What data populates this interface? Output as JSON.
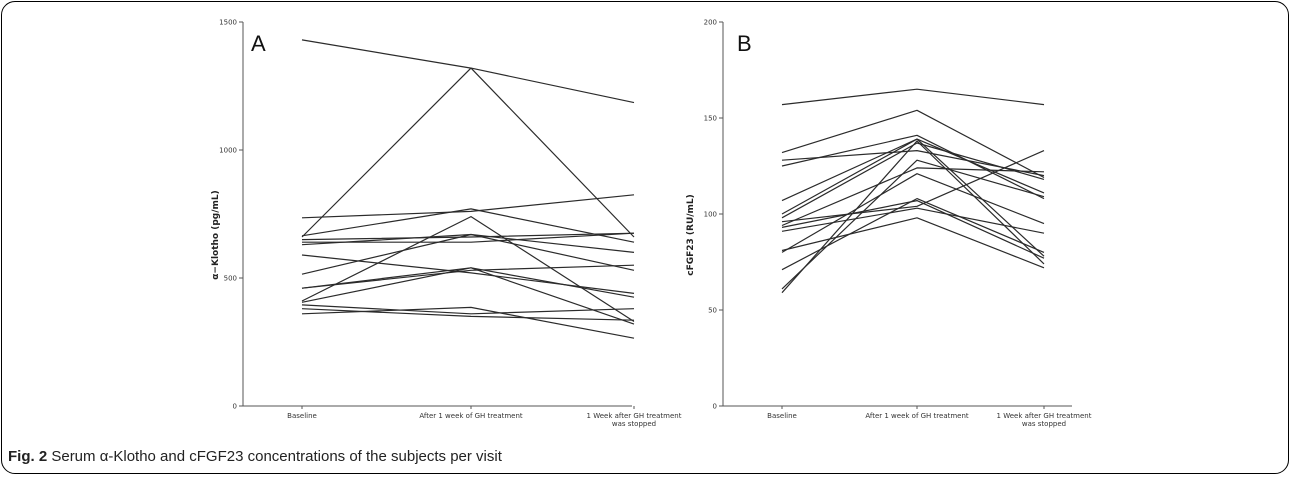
{
  "caption": {
    "label": "Fig. 2",
    "text": "Serum α-Klotho and cFGF23 concentrations of the subjects per visit"
  },
  "chart_data": [
    {
      "type": "line",
      "panel": "A",
      "ylabel": "α−Klotho (pg/mL)",
      "xlabel": "",
      "categories": [
        "Baseline",
        "After 1 week of GH treatment",
        "1 Week after GH treatment was stopped"
      ],
      "ylim": [
        0,
        1500
      ],
      "yticks": [
        0,
        500,
        1000,
        1500
      ],
      "series": [
        {
          "values": [
            1430,
            1320,
            1185
          ]
        },
        {
          "values": [
            660,
            1320,
            660
          ]
        },
        {
          "values": [
            735,
            760,
            825
          ]
        },
        {
          "values": [
            665,
            770,
            640
          ]
        },
        {
          "values": [
            650,
            660,
            675
          ]
        },
        {
          "values": [
            640,
            640,
            675
          ]
        },
        {
          "values": [
            630,
            670,
            530
          ]
        },
        {
          "values": [
            590,
            520,
            440
          ]
        },
        {
          "values": [
            515,
            670,
            600
          ]
        },
        {
          "values": [
            460,
            540,
            425
          ]
        },
        {
          "values": [
            460,
            530,
            550
          ]
        },
        {
          "values": [
            410,
            740,
            330
          ]
        },
        {
          "values": [
            405,
            540,
            320
          ]
        },
        {
          "values": [
            395,
            360,
            380
          ]
        },
        {
          "values": [
            380,
            350,
            335
          ]
        },
        {
          "values": [
            360,
            385,
            265
          ]
        }
      ]
    },
    {
      "type": "line",
      "panel": "B",
      "ylabel": "cFGF23 (RU/mL)",
      "xlabel": "",
      "categories": [
        "Baseline",
        "After 1 week of GH treatment",
        "1 Week after GH treatment was stopped"
      ],
      "ylim": [
        0,
        200
      ],
      "yticks": [
        0,
        50,
        100,
        150,
        200
      ],
      "series": [
        {
          "values": [
            157,
            165,
            157
          ]
        },
        {
          "values": [
            132,
            154,
            119
          ]
        },
        {
          "values": [
            128,
            133,
            120
          ]
        },
        {
          "values": [
            125,
            141,
            108
          ]
        },
        {
          "values": [
            107,
            139,
            111
          ]
        },
        {
          "values": [
            100,
            139,
            78
          ]
        },
        {
          "values": [
            98,
            137,
            118
          ]
        },
        {
          "values": [
            96,
            104,
            133
          ]
        },
        {
          "values": [
            94,
            124,
            122
          ]
        },
        {
          "values": [
            93,
            107,
            77
          ]
        },
        {
          "values": [
            91,
            103,
            90
          ]
        },
        {
          "values": [
            81,
            98,
            72
          ]
        },
        {
          "values": [
            80,
            121,
            95
          ]
        },
        {
          "values": [
            71,
            108,
            80
          ]
        },
        {
          "values": [
            61,
            128,
            109
          ]
        },
        {
          "values": [
            59,
            138,
            74
          ]
        }
      ]
    }
  ]
}
